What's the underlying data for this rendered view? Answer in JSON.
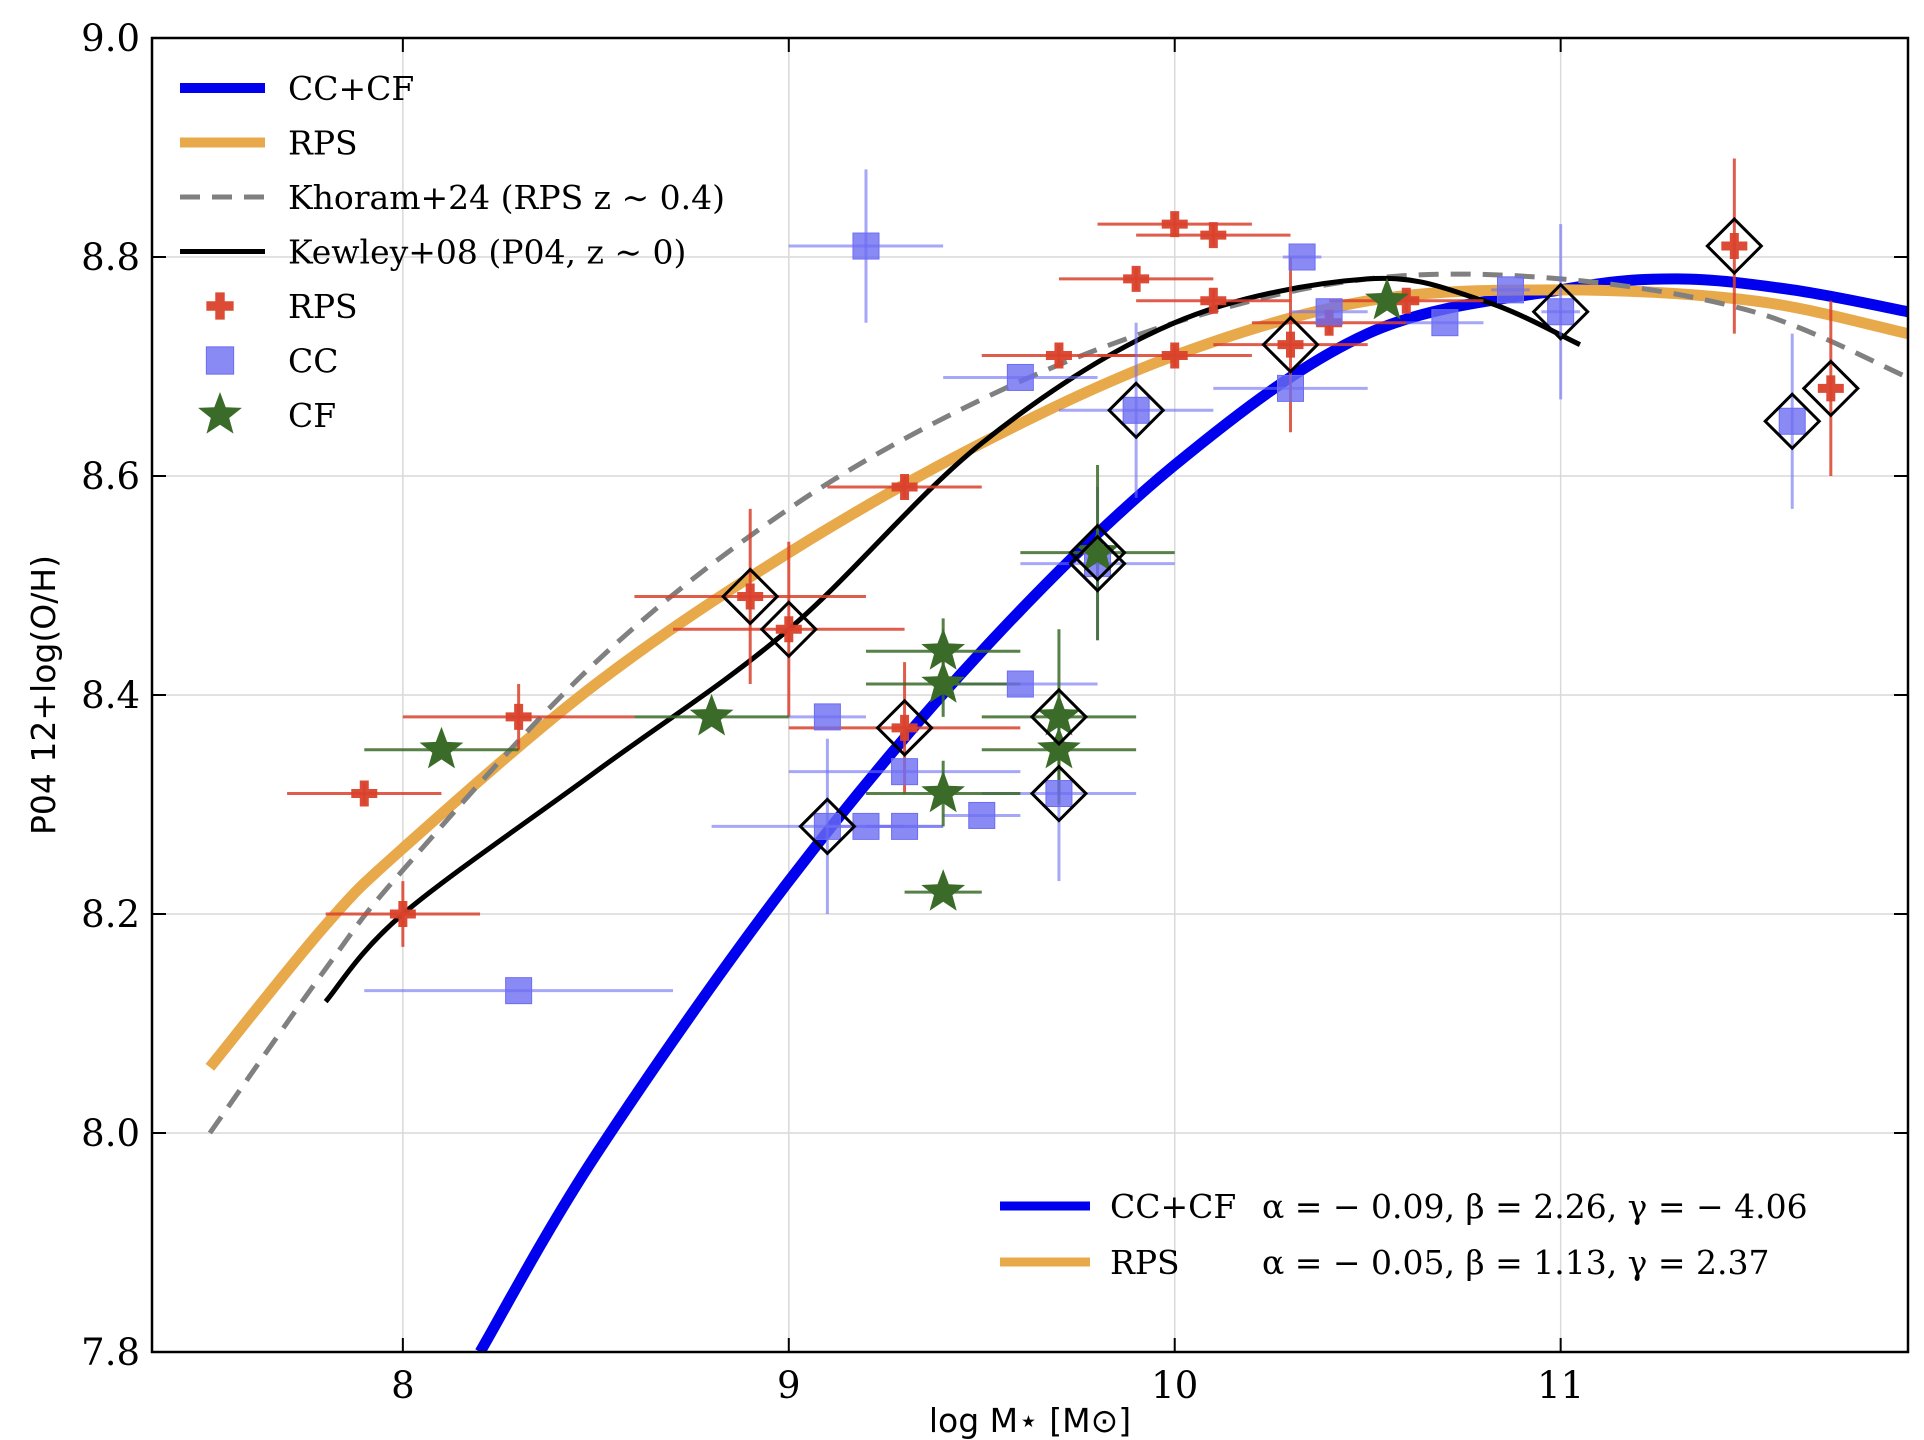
{
  "chart_data": {
    "type": "scatter",
    "xlabel": "log M⋆ [M⊙]",
    "ylabel": "P04 12+log(O/H)",
    "xlim": [
      7.35,
      11.9
    ],
    "ylim": [
      7.8,
      9.0
    ],
    "xticks": [
      8,
      9,
      10,
      11
    ],
    "xtick_labels": [
      "8",
      "9",
      "10",
      "11"
    ],
    "yticks": [
      7.8,
      8.0,
      8.2,
      8.4,
      8.6,
      8.8,
      9.0
    ],
    "ytick_labels": [
      "7.8",
      "8.0",
      "8.2",
      "8.4",
      "8.6",
      "8.8",
      "9.0"
    ],
    "grid": true,
    "legend_placement": "top-left",
    "legend": [
      {
        "label": "CC+CF",
        "kind": "line",
        "color": "#0000ee",
        "width": 10
      },
      {
        "label": "RPS",
        "kind": "line",
        "color": "#e8a94a",
        "width": 10
      },
      {
        "label": "Khoram+24 (RPS z ∼ 0.4)",
        "kind": "dashed",
        "color": "#808080",
        "width": 5
      },
      {
        "label": "Kewley+08 (P04, z ∼ 0)",
        "kind": "line",
        "color": "#000000",
        "width": 5
      },
      {
        "label": "RPS",
        "kind": "marker",
        "marker": "plus",
        "color": "#d9412b"
      },
      {
        "label": "CC",
        "kind": "marker",
        "marker": "square",
        "color": "#6d6df2"
      },
      {
        "label": "CF",
        "kind": "marker",
        "marker": "star",
        "color": "#3a6b28"
      }
    ],
    "fit_legend": [
      {
        "label": "CC+CF",
        "text": "α = − 0.09, β = 2.26, γ = − 4.06",
        "color": "#0000ee"
      },
      {
        "label": "RPS",
        "text": "α = − 0.05, β = 1.13, γ = 2.37",
        "color": "#e8a94a"
      }
    ],
    "curves": [
      {
        "name": "CC+CF",
        "style": "solid",
        "color": "#0000ee",
        "width": 11,
        "x": [
          8.2,
          8.5,
          9.0,
          9.5,
          10.0,
          10.5,
          11.0,
          11.3,
          11.6,
          11.9
        ],
        "y": [
          7.8,
          7.98,
          8.23,
          8.44,
          8.61,
          8.73,
          8.77,
          8.78,
          8.77,
          8.75
        ]
      },
      {
        "name": "RPS",
        "style": "solid",
        "color": "#e8a94a",
        "width": 11,
        "x": [
          7.5,
          7.8,
          8.0,
          8.5,
          9.0,
          9.5,
          10.0,
          10.5,
          11.0,
          11.5,
          11.9
        ],
        "y": [
          8.06,
          8.19,
          8.26,
          8.41,
          8.53,
          8.63,
          8.71,
          8.76,
          8.77,
          8.76,
          8.73
        ]
      },
      {
        "name": "Khoram+24 (RPS z ∼ 0.4)",
        "style": "dashed",
        "color": "#808080",
        "width": 5,
        "x": [
          7.5,
          7.8,
          8.0,
          8.5,
          9.0,
          9.5,
          10.0,
          10.5,
          11.0,
          11.5,
          11.9
        ],
        "y": [
          8.0,
          8.15,
          8.24,
          8.43,
          8.57,
          8.67,
          8.74,
          8.78,
          8.78,
          8.75,
          8.69
        ]
      },
      {
        "name": "Kewley+08 (P04, z ∼ 0)",
        "style": "solid",
        "color": "#000000",
        "width": 5,
        "x": [
          7.8,
          8.0,
          8.5,
          9.0,
          9.5,
          10.0,
          10.5,
          10.8,
          11.05
        ],
        "y": [
          8.12,
          8.2,
          8.33,
          8.46,
          8.63,
          8.74,
          8.78,
          8.76,
          8.72
        ]
      }
    ],
    "series": [
      {
        "name": "RPS",
        "marker": "plus",
        "color": "#d9412b",
        "points": [
          {
            "x": 7.9,
            "y": 8.31,
            "xerr": 0.2,
            "yerr": 0.01
          },
          {
            "x": 8.0,
            "y": 8.2,
            "xerr": 0.2,
            "yerr": 0.03
          },
          {
            "x": 8.3,
            "y": 8.38,
            "xerr": 0.3,
            "yerr": 0.03
          },
          {
            "x": 8.9,
            "y": 8.49,
            "xerr": 0.3,
            "yerr": 0.08,
            "highlight": true
          },
          {
            "x": 9.0,
            "y": 8.46,
            "xerr": 0.3,
            "yerr": 0.08,
            "highlight": true
          },
          {
            "x": 9.3,
            "y": 8.37,
            "xerr": 0.3,
            "yerr": 0.06,
            "highlight": true
          },
          {
            "x": 9.3,
            "y": 8.59,
            "xerr": 0.2,
            "yerr": 0.01
          },
          {
            "x": 9.7,
            "y": 8.71,
            "xerr": 0.2,
            "yerr": 0.01
          },
          {
            "x": 9.9,
            "y": 8.78,
            "xerr": 0.2,
            "yerr": 0.01
          },
          {
            "x": 10.0,
            "y": 8.71,
            "xerr": 0.2,
            "yerr": 0.01
          },
          {
            "x": 10.0,
            "y": 8.83,
            "xerr": 0.2,
            "yerr": 0.01
          },
          {
            "x": 10.1,
            "y": 8.82,
            "xerr": 0.2,
            "yerr": 0.01
          },
          {
            "x": 10.1,
            "y": 8.76,
            "xerr": 0.2,
            "yerr": 0.01
          },
          {
            "x": 10.3,
            "y": 8.72,
            "xerr": 0.2,
            "yerr": 0.08,
            "highlight": true
          },
          {
            "x": 10.4,
            "y": 8.74,
            "xerr": 0.2,
            "yerr": 0.01
          },
          {
            "x": 10.6,
            "y": 8.76,
            "xerr": 0.2,
            "yerr": 0.01
          },
          {
            "x": 11.45,
            "y": 8.81,
            "xerr": 0.0,
            "yerr": 0.08,
            "highlight": true
          },
          {
            "x": 11.7,
            "y": 8.68,
            "xerr": 0.0,
            "yerr": 0.08,
            "highlight": true
          }
        ]
      },
      {
        "name": "CC",
        "marker": "square",
        "color": "#6d6df2",
        "points": [
          {
            "x": 8.3,
            "y": 8.13,
            "xerr": 0.4,
            "yerr": 0.0
          },
          {
            "x": 9.1,
            "y": 8.28,
            "xerr": 0.3,
            "yerr": 0.08,
            "highlight": true
          },
          {
            "x": 9.1,
            "y": 8.38,
            "xerr": 0.1,
            "yerr": 0.0
          },
          {
            "x": 9.2,
            "y": 8.28,
            "xerr": 0.1,
            "yerr": 0.0
          },
          {
            "x": 9.2,
            "y": 8.81,
            "xerr": 0.2,
            "yerr": 0.07
          },
          {
            "x": 9.3,
            "y": 8.28,
            "xerr": 0.1,
            "yerr": 0.0
          },
          {
            "x": 9.3,
            "y": 8.33,
            "xerr": 0.3,
            "yerr": 0.0
          },
          {
            "x": 9.5,
            "y": 8.29,
            "xerr": 0.1,
            "yerr": 0.0
          },
          {
            "x": 9.6,
            "y": 8.41,
            "xerr": 0.2,
            "yerr": 0.0
          },
          {
            "x": 9.6,
            "y": 8.69,
            "xerr": 0.2,
            "yerr": 0.0
          },
          {
            "x": 9.7,
            "y": 8.31,
            "xerr": 0.2,
            "yerr": 0.08,
            "highlight": true
          },
          {
            "x": 9.8,
            "y": 8.52,
            "xerr": 0.2,
            "yerr": 0.07,
            "highlight": true
          },
          {
            "x": 9.9,
            "y": 8.66,
            "xerr": 0.2,
            "yerr": 0.08,
            "highlight": true
          },
          {
            "x": 10.3,
            "y": 8.68,
            "xerr": 0.2,
            "yerr": 0.0
          },
          {
            "x": 10.33,
            "y": 8.8,
            "xerr": 0.05,
            "yerr": 0.0
          },
          {
            "x": 10.4,
            "y": 8.75,
            "xerr": 0.1,
            "yerr": 0.0
          },
          {
            "x": 10.7,
            "y": 8.74,
            "xerr": 0.1,
            "yerr": 0.0
          },
          {
            "x": 10.87,
            "y": 8.77,
            "xerr": 0.05,
            "yerr": 0.0
          },
          {
            "x": 11.0,
            "y": 8.75,
            "xerr": 0.05,
            "yerr": 0.08,
            "highlight": true
          },
          {
            "x": 11.6,
            "y": 8.65,
            "xerr": 0.0,
            "yerr": 0.08,
            "highlight": true
          }
        ]
      },
      {
        "name": "CF",
        "marker": "star",
        "color": "#3a6b28",
        "points": [
          {
            "x": 8.1,
            "y": 8.35,
            "xerr": 0.2,
            "yerr": 0.0
          },
          {
            "x": 8.8,
            "y": 8.38,
            "xerr": 0.2,
            "yerr": 0.0
          },
          {
            "x": 9.4,
            "y": 8.22,
            "xerr": 0.1,
            "yerr": 0.0
          },
          {
            "x": 9.4,
            "y": 8.31,
            "xerr": 0.2,
            "yerr": 0.03
          },
          {
            "x": 9.4,
            "y": 8.41,
            "xerr": 0.2,
            "yerr": 0.03
          },
          {
            "x": 9.4,
            "y": 8.44,
            "xerr": 0.2,
            "yerr": 0.03
          },
          {
            "x": 9.7,
            "y": 8.35,
            "xerr": 0.2,
            "yerr": 0.04
          },
          {
            "x": 9.7,
            "y": 8.38,
            "xerr": 0.2,
            "yerr": 0.08,
            "highlight": true
          },
          {
            "x": 9.8,
            "y": 8.53,
            "xerr": 0.2,
            "yerr": 0.08,
            "highlight": true
          },
          {
            "x": 10.55,
            "y": 8.76,
            "xerr": 0.0,
            "yerr": 0.0
          }
        ]
      }
    ]
  }
}
